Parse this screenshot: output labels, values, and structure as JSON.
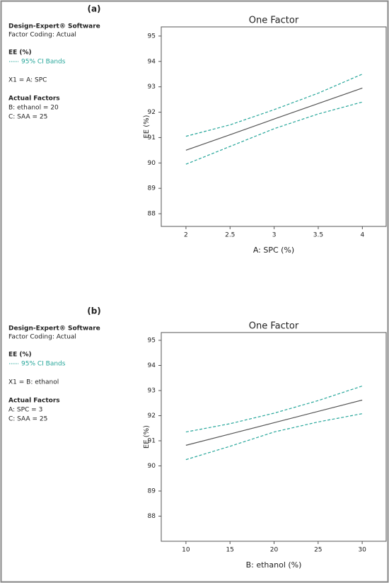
{
  "chart_data": [
    {
      "type": "line",
      "panel_label": "(a)",
      "title": "One Factor",
      "software": "Design-Expert® Software",
      "factor_coding": "Factor Coding: Actual",
      "response": "EE (%)",
      "ci_label": "95% CI Bands",
      "x1": "X1 = A: SPC",
      "actual_factors_title": "Actual Factors",
      "actual_factors": [
        "B: ethanol = 20",
        "C: SAA = 25"
      ],
      "x_label": "A: SPC (%)",
      "y_label": "EE (%)",
      "x": [
        2,
        2.5,
        3,
        3.5,
        4
      ],
      "series": [
        {
          "color": "#555555",
          "values": [
            90.5,
            91.11,
            91.73,
            92.34,
            92.95
          ]
        },
        {
          "color": "#26a69a",
          "values": [
            91.05,
            91.5,
            92.1,
            92.75,
            93.5
          ]
        },
        {
          "color": "#26a69a",
          "values": [
            89.95,
            90.65,
            91.35,
            91.93,
            92.4
          ]
        }
      ],
      "xlim": [
        1.72,
        4.27
      ],
      "ylim": [
        87.5,
        95.36
      ],
      "xticks": [
        2,
        2.5,
        3,
        3.5,
        4
      ],
      "yticks": [
        88,
        89,
        90,
        91,
        92,
        93,
        94,
        95
      ],
      "grid": false
    },
    {
      "type": "line",
      "panel_label": "(b)",
      "title": "One Factor",
      "software": "Design-Expert® Software",
      "factor_coding": "Factor Coding: Actual",
      "response": "EE (%)",
      "ci_label": "95% CI Bands",
      "x1": "X1 = B: ethanol",
      "actual_factors_title": "Actual Factors",
      "actual_factors": [
        "A: SPC = 3",
        "C: SAA = 25"
      ],
      "x_label": "B: ethanol (%)",
      "y_label": "EE (%)",
      "x": [
        10,
        15,
        20,
        25,
        30
      ],
      "series": [
        {
          "color": "#555555",
          "values": [
            90.82,
            91.27,
            91.72,
            92.17,
            92.62
          ]
        },
        {
          "color": "#26a69a",
          "values": [
            91.35,
            91.68,
            92.1,
            92.6,
            93.18
          ]
        },
        {
          "color": "#26a69a",
          "values": [
            90.25,
            90.78,
            91.35,
            91.75,
            92.08
          ]
        }
      ],
      "xlim": [
        7.2,
        32.72
      ],
      "ylim": [
        87.0,
        95.31
      ],
      "xticks": [
        10,
        15,
        20,
        25,
        30
      ],
      "yticks": [
        88,
        89,
        90,
        91,
        92,
        93,
        94,
        95
      ],
      "grid": false
    }
  ]
}
